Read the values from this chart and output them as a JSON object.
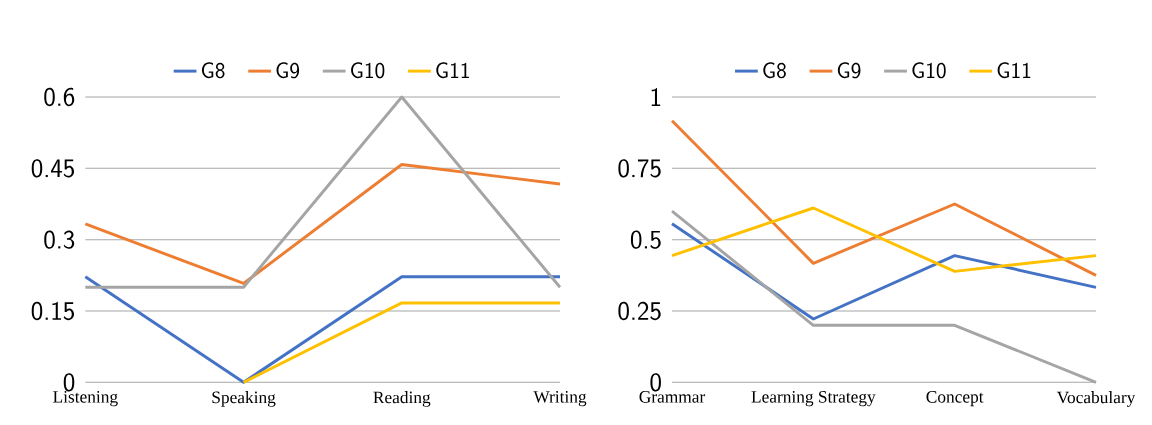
{
  "chart_data": [
    {
      "type": "line",
      "categories": [
        "Listening",
        "Speaking",
        "Reading",
        "Writing"
      ],
      "series": [
        {
          "name": "G8",
          "color": "#4472c4",
          "values": [
            0.222,
            0,
            0.222,
            0.222
          ]
        },
        {
          "name": "G9",
          "color": "#ed7d31",
          "values": [
            0.333,
            0.208,
            0.458,
            0.417
          ]
        },
        {
          "name": "G10",
          "color": "#a5a5a5",
          "values": [
            0.2,
            0.2,
            0.6,
            0.2
          ]
        },
        {
          "name": "G11",
          "color": "#ffc000",
          "values": [
            null,
            0,
            0.167,
            0.167
          ]
        }
      ],
      "ylim": [
        0,
        0.6
      ],
      "yticks": [
        0,
        0.15,
        0.3,
        0.45,
        0.6
      ],
      "grid": "y",
      "legend": "top",
      "line_style": "solid",
      "marker": "none"
    },
    {
      "type": "line",
      "categories": [
        "Grammar",
        "Learning Strategy",
        "Concept",
        "Vocabulary"
      ],
      "series": [
        {
          "name": "G8",
          "color": "#4472c4",
          "values": [
            0.556,
            0.222,
            0.444,
            0.333
          ]
        },
        {
          "name": "G9",
          "color": "#ed7d31",
          "values": [
            0.917,
            0.417,
            0.625,
            0.375
          ]
        },
        {
          "name": "G10",
          "color": "#a5a5a5",
          "values": [
            0.6,
            0.2,
            0.2,
            0
          ]
        },
        {
          "name": "G11",
          "color": "#ffc000",
          "values": [
            0.444,
            0.611,
            0.389,
            0.444
          ]
        }
      ],
      "ylim": [
        0,
        1
      ],
      "yticks": [
        0,
        0.25,
        0.5,
        0.75,
        1
      ],
      "grid": "y",
      "legend": "top",
      "line_style": "solid",
      "marker": "none"
    }
  ]
}
